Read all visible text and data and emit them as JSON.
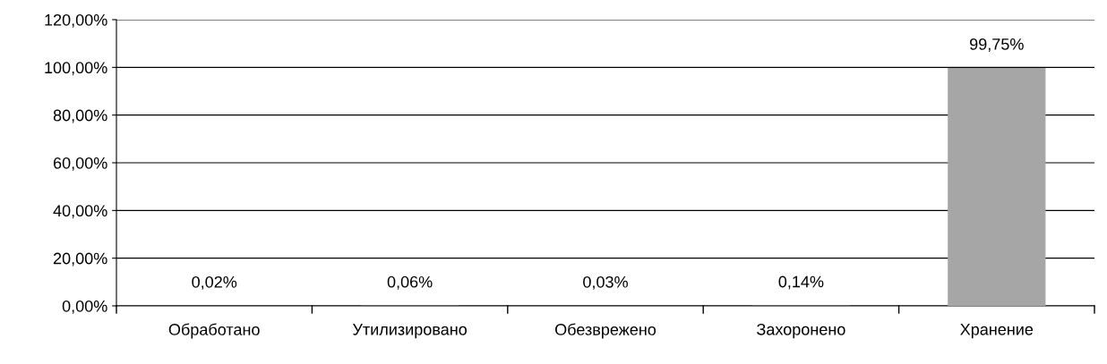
{
  "chart_data": {
    "type": "bar",
    "categories": [
      "Обработано",
      "Утилизировано",
      "Обезврежено",
      "Захоронено",
      "Хранение"
    ],
    "values": [
      0.02,
      0.06,
      0.03,
      0.14,
      99.75
    ],
    "value_labels": [
      "0,02%",
      "0,06%",
      "0,03%",
      "0,14%",
      "99,75%"
    ],
    "color": "#a6a6a6",
    "ylim": [
      0,
      120
    ],
    "yticks": [
      {
        "value": 0,
        "label": "0,00%"
      },
      {
        "value": 20,
        "label": "20,00%"
      },
      {
        "value": 40,
        "label": "40,00%"
      },
      {
        "value": 60,
        "label": "60,00%"
      },
      {
        "value": 80,
        "label": "80,00%"
      },
      {
        "value": 100,
        "label": "100,00%"
      },
      {
        "value": 120,
        "label": "120,00%"
      }
    ],
    "grid": "y"
  }
}
